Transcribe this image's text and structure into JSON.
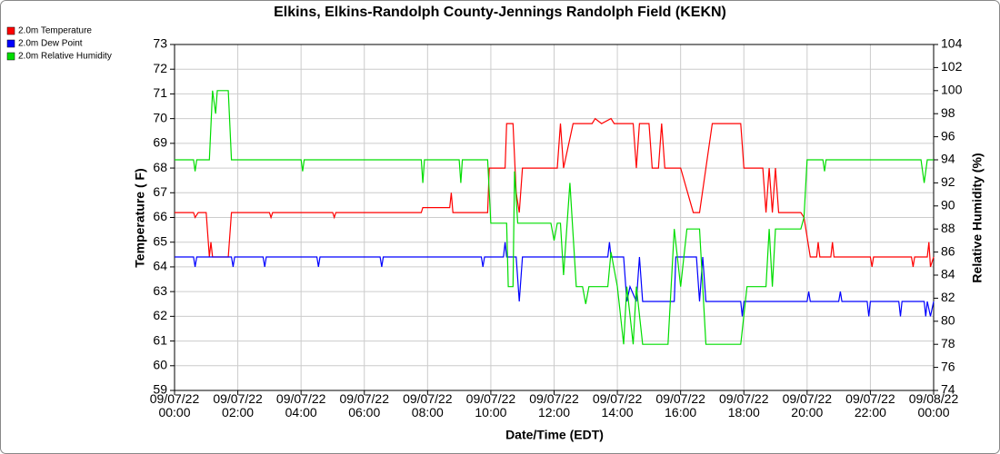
{
  "chart_data": {
    "type": "line",
    "title": "Elkins, Elkins-Randolph County-Jennings Randolph Field (KEKN)",
    "xlabel": "Date/Time (EDT)",
    "ylabel": "Temperature ( F)",
    "y2label": "Relative Humidity (%)",
    "grid": true,
    "legend": "top-left",
    "xlim": [
      0,
      24
    ],
    "xticks": [
      {
        "value": 0,
        "label": "09/07/22\n00:00"
      },
      {
        "value": 2,
        "label": "09/07/22\n02:00"
      },
      {
        "value": 4,
        "label": "09/07/22\n04:00"
      },
      {
        "value": 6,
        "label": "09/07/22\n06:00"
      },
      {
        "value": 8,
        "label": "09/07/22\n08:00"
      },
      {
        "value": 10,
        "label": "09/07/22\n10:00"
      },
      {
        "value": 12,
        "label": "09/07/22\n12:00"
      },
      {
        "value": 14,
        "label": "09/07/22\n14:00"
      },
      {
        "value": 16,
        "label": "09/07/22\n16:00"
      },
      {
        "value": 18,
        "label": "09/07/22\n18:00"
      },
      {
        "value": 20,
        "label": "09/07/22\n20:00"
      },
      {
        "value": 22,
        "label": "09/07/22\n22:00"
      },
      {
        "value": 24,
        "label": "09/08/22\n00:00"
      }
    ],
    "ylim": [
      59,
      73
    ],
    "yticks": [
      59,
      60,
      61,
      62,
      63,
      64,
      65,
      66,
      67,
      68,
      69,
      70,
      71,
      72,
      73
    ],
    "y2lim": [
      74,
      104
    ],
    "y2ticks": [
      74,
      76,
      78,
      80,
      82,
      84,
      86,
      88,
      90,
      92,
      94,
      96,
      98,
      100,
      102,
      104
    ],
    "series": [
      {
        "name": "2.0m Temperature",
        "color": "#ff0000",
        "x": [
          0,
          0.6,
          0.65,
          0.75,
          1.0,
          1.1,
          1.15,
          1.2,
          1.7,
          1.8,
          3.0,
          3.05,
          3.1,
          5.0,
          5.05,
          5.1,
          7.8,
          7.85,
          8.7,
          8.75,
          8.8,
          9.9,
          9.95,
          10.45,
          10.5,
          10.7,
          10.8,
          10.9,
          11.0,
          12.1,
          12.2,
          12.3,
          12.6,
          13.2,
          13.3,
          13.5,
          13.8,
          13.9,
          14.5,
          14.6,
          14.7,
          15.0,
          15.1,
          15.3,
          15.4,
          15.5,
          16.0,
          16.4,
          16.6,
          16.8,
          17.0,
          17.9,
          18.0,
          18.6,
          18.7,
          18.8,
          18.9,
          19.0,
          19.1,
          19.8,
          19.9,
          20.1,
          20.3,
          20.35,
          20.4,
          20.75,
          20.8,
          20.85,
          22.0,
          22.05,
          22.1,
          23.3,
          23.35,
          23.4,
          23.8,
          23.85,
          23.9,
          24
        ],
        "values": [
          66.2,
          66.2,
          66,
          66.2,
          66.2,
          64.4,
          65,
          64.4,
          64.4,
          66.2,
          66.2,
          66,
          66.2,
          66.2,
          66,
          66.2,
          66.2,
          66.4,
          66.4,
          67,
          66.2,
          66.2,
          68,
          68,
          69.8,
          69.8,
          67,
          66.2,
          68,
          68,
          69.8,
          68,
          69.8,
          69.8,
          70,
          69.8,
          70,
          69.8,
          69.8,
          68,
          69.8,
          69.8,
          68,
          68,
          69.8,
          68,
          68,
          66.2,
          66.2,
          68,
          69.8,
          69.8,
          68,
          68,
          66.2,
          68,
          66.2,
          68,
          66.2,
          66.2,
          66,
          64.4,
          64.4,
          65,
          64.4,
          64.4,
          65,
          64.4,
          64.4,
          64,
          64.4,
          64.4,
          64,
          64.4,
          64.4,
          65,
          64,
          64.4
        ]
      },
      {
        "name": "2.0m Dew Point",
        "color": "#0000ff",
        "x": [
          0,
          0.6,
          0.65,
          0.7,
          1.8,
          1.85,
          1.9,
          2.8,
          2.85,
          2.9,
          4.5,
          4.55,
          4.6,
          6.5,
          6.55,
          6.6,
          9.7,
          9.75,
          9.8,
          10.4,
          10.45,
          10.5,
          10.8,
          10.9,
          11.0,
          13.7,
          13.75,
          13.8,
          14.2,
          14.3,
          14.4,
          14.6,
          14.7,
          14.8,
          15.8,
          15.85,
          16.5,
          16.6,
          16.7,
          16.8,
          17.9,
          17.95,
          18.0,
          20.0,
          20.05,
          20.1,
          21.0,
          21.05,
          21.1,
          21.9,
          21.95,
          22.0,
          22.9,
          22.95,
          23.0,
          23.7,
          23.75,
          23.8,
          23.9,
          24
        ],
        "values": [
          64.4,
          64.4,
          64,
          64.4,
          64.4,
          64,
          64.4,
          64.4,
          64,
          64.4,
          64.4,
          64,
          64.4,
          64.4,
          64,
          64.4,
          64.4,
          64,
          64.4,
          64.4,
          65,
          64.4,
          64.4,
          62.6,
          64.4,
          64.4,
          65,
          64.4,
          64.4,
          62.6,
          63.2,
          62.6,
          64.4,
          62.6,
          62.6,
          64.4,
          64.4,
          62.6,
          64.4,
          62.6,
          62.6,
          62,
          62.6,
          62.6,
          63,
          62.6,
          62.6,
          63,
          62.6,
          62.6,
          62,
          62.6,
          62.6,
          62,
          62.6,
          62.6,
          62,
          62.6,
          62,
          62.6
        ]
      },
      {
        "name": "2.0m Relative Humidity",
        "color": "#00dd00",
        "axis": "y2",
        "x": [
          0,
          0.6,
          0.65,
          0.7,
          1.1,
          1.2,
          1.3,
          1.35,
          1.7,
          1.8,
          4.0,
          4.05,
          4.1,
          7.8,
          7.85,
          7.9,
          9.0,
          9.05,
          9.1,
          9.9,
          10.0,
          10.5,
          10.55,
          10.7,
          10.75,
          10.85,
          11.0,
          11.9,
          12.0,
          12.1,
          12.2,
          12.3,
          12.5,
          12.7,
          12.9,
          13.0,
          13.1,
          13.7,
          13.8,
          14.0,
          14.2,
          14.3,
          14.5,
          14.6,
          14.8,
          15.6,
          15.8,
          16.0,
          16.2,
          16.6,
          16.8,
          17.9,
          18.1,
          18.7,
          18.8,
          18.9,
          19.0,
          19.8,
          19.9,
          20.0,
          20.5,
          20.55,
          20.6,
          23.6,
          23.7,
          23.8,
          24
        ],
        "values": [
          94,
          94,
          93,
          94,
          94,
          100,
          98,
          100,
          100,
          94,
          94,
          93,
          94,
          94,
          92,
          94,
          94,
          92,
          94,
          94,
          88.5,
          88.5,
          83,
          83,
          93,
          88.5,
          88.5,
          88.5,
          87,
          88.5,
          88.5,
          84,
          92,
          83,
          83,
          81.5,
          83,
          83,
          86,
          83,
          78,
          83,
          78,
          83,
          78,
          78,
          88,
          83,
          88,
          88,
          78,
          78,
          83,
          83,
          88,
          83,
          88,
          88,
          89,
          94,
          94,
          93,
          94,
          94,
          92,
          94,
          94
        ]
      }
    ]
  }
}
